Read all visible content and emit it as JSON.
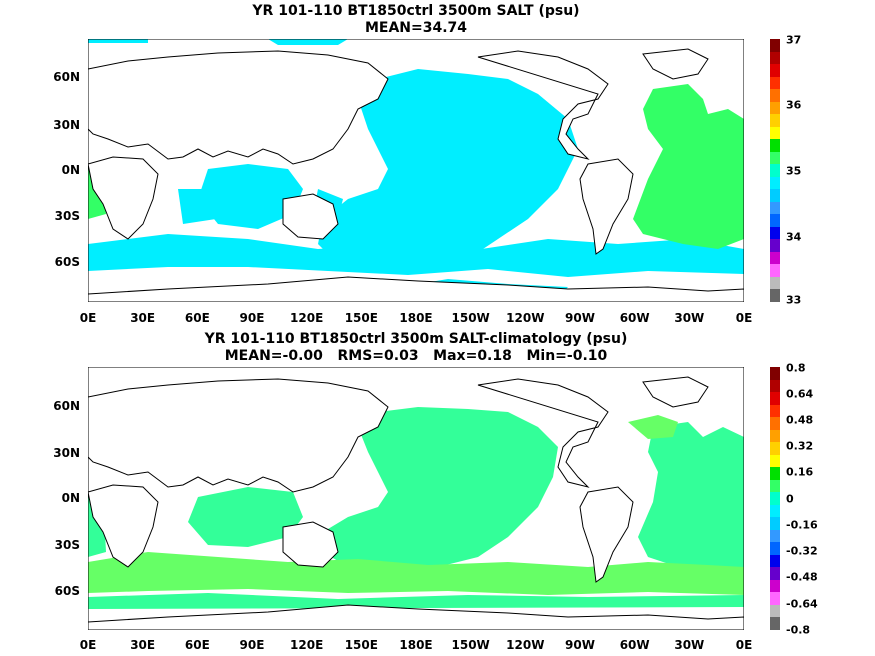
{
  "panel1": {
    "title_line1": "YR 101-110 BT1850ctrl 3500m SALT (psu)",
    "title_line2": "MEAN=34.74",
    "y_labels": [
      "60N",
      "30N",
      "0N",
      "30S",
      "60S"
    ],
    "x_labels": [
      "0E",
      "30E",
      "60E",
      "90E",
      "120E",
      "150E",
      "180E",
      "150W",
      "120W",
      "90W",
      "60W",
      "30W",
      "0E"
    ],
    "colorbar_labels": [
      "37",
      "36",
      "35",
      "34",
      "33"
    ],
    "colorbar_colors": [
      "#800000",
      "#b00000",
      "#e00000",
      "#ff3000",
      "#ff7000",
      "#ffa000",
      "#ffd000",
      "#ffff00",
      "#00e000",
      "#33ff66",
      "#00ffcc",
      "#00eeff",
      "#00ccff",
      "#3399ff",
      "#0066ff",
      "#0000ee",
      "#6600cc",
      "#cc00cc",
      "#ff66ff",
      "#bbbbbb",
      "#666666"
    ],
    "map_colors": {
      "ocean": "#00eeff",
      "atlantic": "#33ff66",
      "land": "#ffffff",
      "coast": "#000000"
    }
  },
  "panel2": {
    "title_line1": "YR 101-110 BT1850ctrl 3500m SALT-climatology (psu)",
    "title_line2": "MEAN=-0.00   RMS=0.03   Max=0.18   Min=-0.10",
    "y_labels": [
      "60N",
      "30N",
      "0N",
      "30S",
      "60S"
    ],
    "x_labels": [
      "0E",
      "30E",
      "60E",
      "90E",
      "120E",
      "150E",
      "180E",
      "150W",
      "120W",
      "90W",
      "60W",
      "30W",
      "0E"
    ],
    "colorbar_labels": [
      "0.8",
      "0.64",
      "0.48",
      "0.32",
      "0.16",
      "0",
      "-0.16",
      "-0.32",
      "-0.48",
      "-0.64",
      "-0.8"
    ],
    "colorbar_colors": [
      "#800000",
      "#b00000",
      "#e00000",
      "#ff3000",
      "#ff7000",
      "#ffa000",
      "#ffd000",
      "#ffff00",
      "#00e000",
      "#33ff66",
      "#00ffcc",
      "#00eeff",
      "#00ccff",
      "#3399ff",
      "#0066ff",
      "#0000ee",
      "#6600cc",
      "#cc00cc",
      "#ff66ff",
      "#bbbbbb",
      "#666666"
    ],
    "map_colors": {
      "ocean": "#33ff99",
      "south": "#66ff66",
      "land": "#ffffff",
      "coast": "#000000"
    }
  }
}
